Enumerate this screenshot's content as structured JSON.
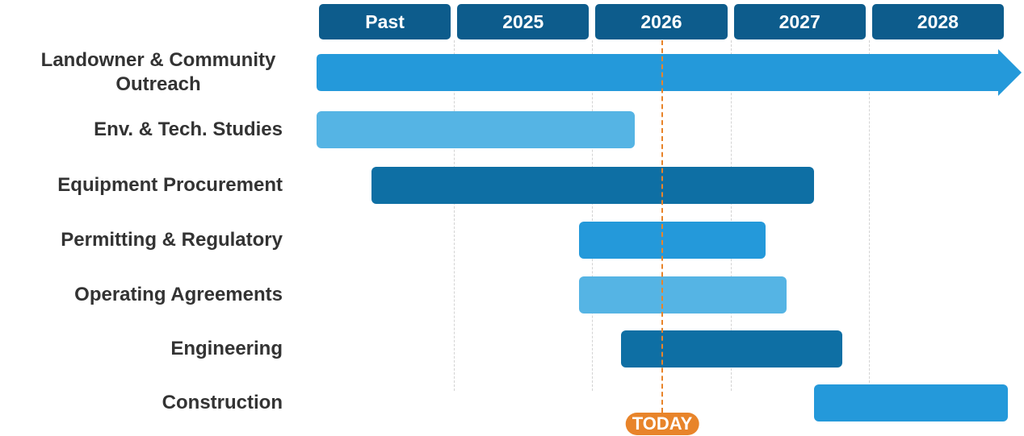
{
  "chart_data": {
    "type": "gantt",
    "xlim": [
      2024,
      2029
    ],
    "xticks": [
      {
        "value": 2024.5,
        "label": "Past"
      },
      {
        "value": 2025.5,
        "label": "2025"
      },
      {
        "value": 2026.5,
        "label": "2026"
      },
      {
        "value": 2027.5,
        "label": "2027"
      },
      {
        "value": 2028.5,
        "label": "2028"
      }
    ],
    "grid": true,
    "tasks": [
      {
        "name": "Landowner & Community Outreach",
        "start": 2024,
        "end": 2029,
        "color": "#2499da",
        "arrow": true
      },
      {
        "name": "Env. & Tech. Studies",
        "start": 2024,
        "end": 2026.3,
        "color": "#55b4e4"
      },
      {
        "name": "Equipment Procurement",
        "start": 2024.4,
        "end": 2027.6,
        "color": "#0e6fa4"
      },
      {
        "name": "Permitting & Regulatory",
        "start": 2025.9,
        "end": 2027.25,
        "color": "#2499da"
      },
      {
        "name": "Operating Agreements",
        "start": 2025.9,
        "end": 2027.4,
        "color": "#55b4e4"
      },
      {
        "name": "Engineering",
        "start": 2026.2,
        "end": 2027.8,
        "color": "#0e6fa4"
      },
      {
        "name": "Construction",
        "start": 2027.6,
        "end": 2029,
        "color": "#2499da"
      }
    ],
    "today": {
      "value": 2026.5,
      "label": "TODAY",
      "color": "#e8842a"
    }
  }
}
